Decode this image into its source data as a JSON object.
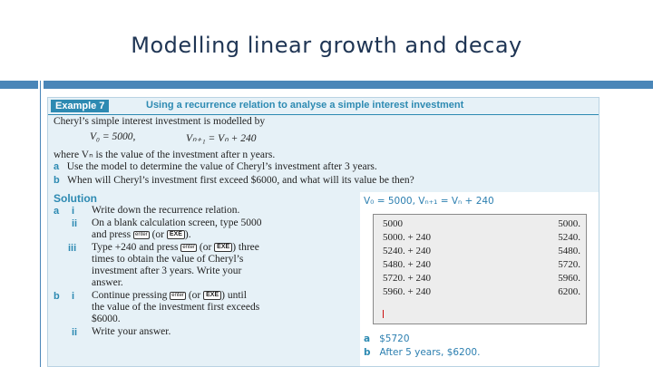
{
  "slide": {
    "title": "Modelling linear growth and decay"
  },
  "example": {
    "tag": "Example 7",
    "title": "Using a recurrence relation to analyse a simple interest investment",
    "intro": "Cheryl’s simple interest investment is modelled by",
    "formula_v0": "V₀ = 5000,",
    "formula_rec": "Vₙ₊₁ = Vₙ + 240",
    "where": "where Vₙ is the value of the investment after n years.",
    "a_label": "a",
    "a_text": "Use the model to determine the value of Cheryl’s investment after 3 years.",
    "b_label": "b",
    "b_text": "When will Cheryl’s investment first exceed $6000, and what will its value be then?"
  },
  "solution": {
    "heading": "Solution",
    "a_label": "a",
    "b_label": "b",
    "steps": [
      {
        "num": "i",
        "lines": [
          "Write down the recurrence relation."
        ]
      },
      {
        "num": "ii",
        "lines": [
          "On a blank calculation screen, type 5000",
          "and press [enter] (or [EXE])."
        ]
      },
      {
        "num": "iii",
        "lines": [
          "Type +240 and press [enter] (or [EXE]) three",
          "times to obtain the value of Cheryl’s",
          "investment after 3 years. Write your",
          "answer."
        ]
      },
      {
        "num": "i",
        "lines": [
          "Continue pressing [enter] (or [EXE]) until",
          "the value of the investment first exceeds",
          "$6000."
        ]
      },
      {
        "num": "ii",
        "lines": [
          "Write your answer."
        ]
      }
    ],
    "keys": {
      "enter": "enter",
      "exe": "EXE"
    }
  },
  "work": {
    "recurrence": "V₀ = 5000, Vₙ₊₁ = Vₙ + 240",
    "calc_rows": [
      {
        "lhs": "5000",
        "rhs": "5000."
      },
      {
        "lhs": "5000. + 240",
        "rhs": "5240."
      },
      {
        "lhs": "5240. + 240",
        "rhs": "5480."
      },
      {
        "lhs": "5480. + 240",
        "rhs": "5720."
      },
      {
        "lhs": "5720. + 240",
        "rhs": "5960."
      },
      {
        "lhs": "5960. + 240",
        "rhs": "6200."
      }
    ],
    "answer_a_label": "a",
    "answer_a": "$5720",
    "answer_b_label": "b",
    "answer_b": "After 5 years, $6200."
  }
}
